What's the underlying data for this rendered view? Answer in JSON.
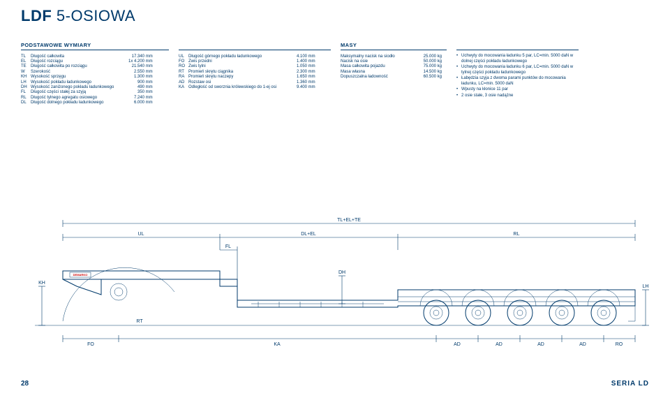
{
  "title_prefix": "LDF",
  "title_suffix": "5-OSIOWA",
  "sections": {
    "dims_header": "PODSTAWOWE WYMIARY",
    "mass_header": "MASY"
  },
  "dims_left": [
    {
      "code": "TL",
      "label": "Długość całkowita",
      "value": "17.340 mm"
    },
    {
      "code": "EL",
      "label": "Długość rozciągu",
      "value": "1x 4.200 mm"
    },
    {
      "code": "TE",
      "label": "Długość całkowita po rozciągu",
      "value": "21.540 mm"
    },
    {
      "code": "W",
      "label": "Szerokość",
      "value": "2.550 mm"
    },
    {
      "code": "KH",
      "label": "Wysokość sprzęgu",
      "value": "1.300 mm"
    },
    {
      "code": "LH",
      "label": "Wysokość pokładu ładunkowego",
      "value": "900 mm"
    },
    {
      "code": "DH",
      "label": "Wysokość zaniżonego pokładu ładunkowego",
      "value": "490 mm"
    },
    {
      "code": "FL",
      "label": "Długość części stałej za szyją",
      "value": "350 mm"
    },
    {
      "code": "RL",
      "label": "Długość tylnego agregatu osiowego",
      "value": "7.240 mm"
    },
    {
      "code": "DL",
      "label": "Długość dolnego pokładu ładunkowego",
      "value": "6.000 mm"
    }
  ],
  "dims_mid": [
    {
      "code": "UL",
      "label": "Długość górnego pokładu ładunkowego",
      "value": "4.100 mm"
    },
    {
      "code": "FO",
      "label": "Zwis przedni",
      "value": "1.400 mm"
    },
    {
      "code": "RO",
      "label": "Zwis tylni",
      "value": "1.050 mm"
    },
    {
      "code": "RT",
      "label": "Promień skrętu ciągnika",
      "value": "2.300 mm"
    },
    {
      "code": "RA",
      "label": "Promień skrętu naczepy",
      "value": "1.650 mm"
    },
    {
      "code": "AD",
      "label": "Rozstaw osi",
      "value": "1.360 mm"
    },
    {
      "code": "KA",
      "label": "Odległość od sworznia królewskiego do 1-ej osi",
      "value": "9.400 mm"
    }
  ],
  "masses": [
    {
      "label": "Maksymalny nacisk na siodło",
      "value": "25.000 kg"
    },
    {
      "label": "Nacisk na osie",
      "value": "50.000 kg"
    },
    {
      "label": "Masa całkowita pojazdu",
      "value": "75.000 kg"
    },
    {
      "label": "Masa własna",
      "value": "14.500 kg"
    },
    {
      "label": "Dopuszczalna ładowność",
      "value": "60.500 kg"
    }
  ],
  "features": [
    "Uchwyty do mocowania ładunku 5 par, LC=min. 5000 daN w dolnej części pokładu ładunkowego",
    "Uchwyty do mocowania ładunku 6 par, LC=min. 5000 daN w tylnej części pokładu ładunkowego",
    "Łabędzia szyja z dwoma parami punktów do mocowania ładunku, LC=min. 5000 daN",
    "Wpusty na kłonice 11 par",
    "2 osie stałe, 3 osie nadążne"
  ],
  "diagram_labels": {
    "TL_EL_TE": "TL+EL+TE",
    "UL": "UL",
    "DL_EL": "DL+EL",
    "RL": "RL",
    "FL": "FL",
    "DH": "DH",
    "KH": "KH",
    "RT": "RT",
    "LH": "LH",
    "FO": "FO",
    "KA": "KA",
    "AD": "AD",
    "RO": "RO",
    "logo": "DEMARKO"
  },
  "page_number": "28",
  "series": "SERIA LD",
  "colors": {
    "primary": "#003a6b",
    "accent": "#cc0000",
    "background": "#ffffff"
  }
}
